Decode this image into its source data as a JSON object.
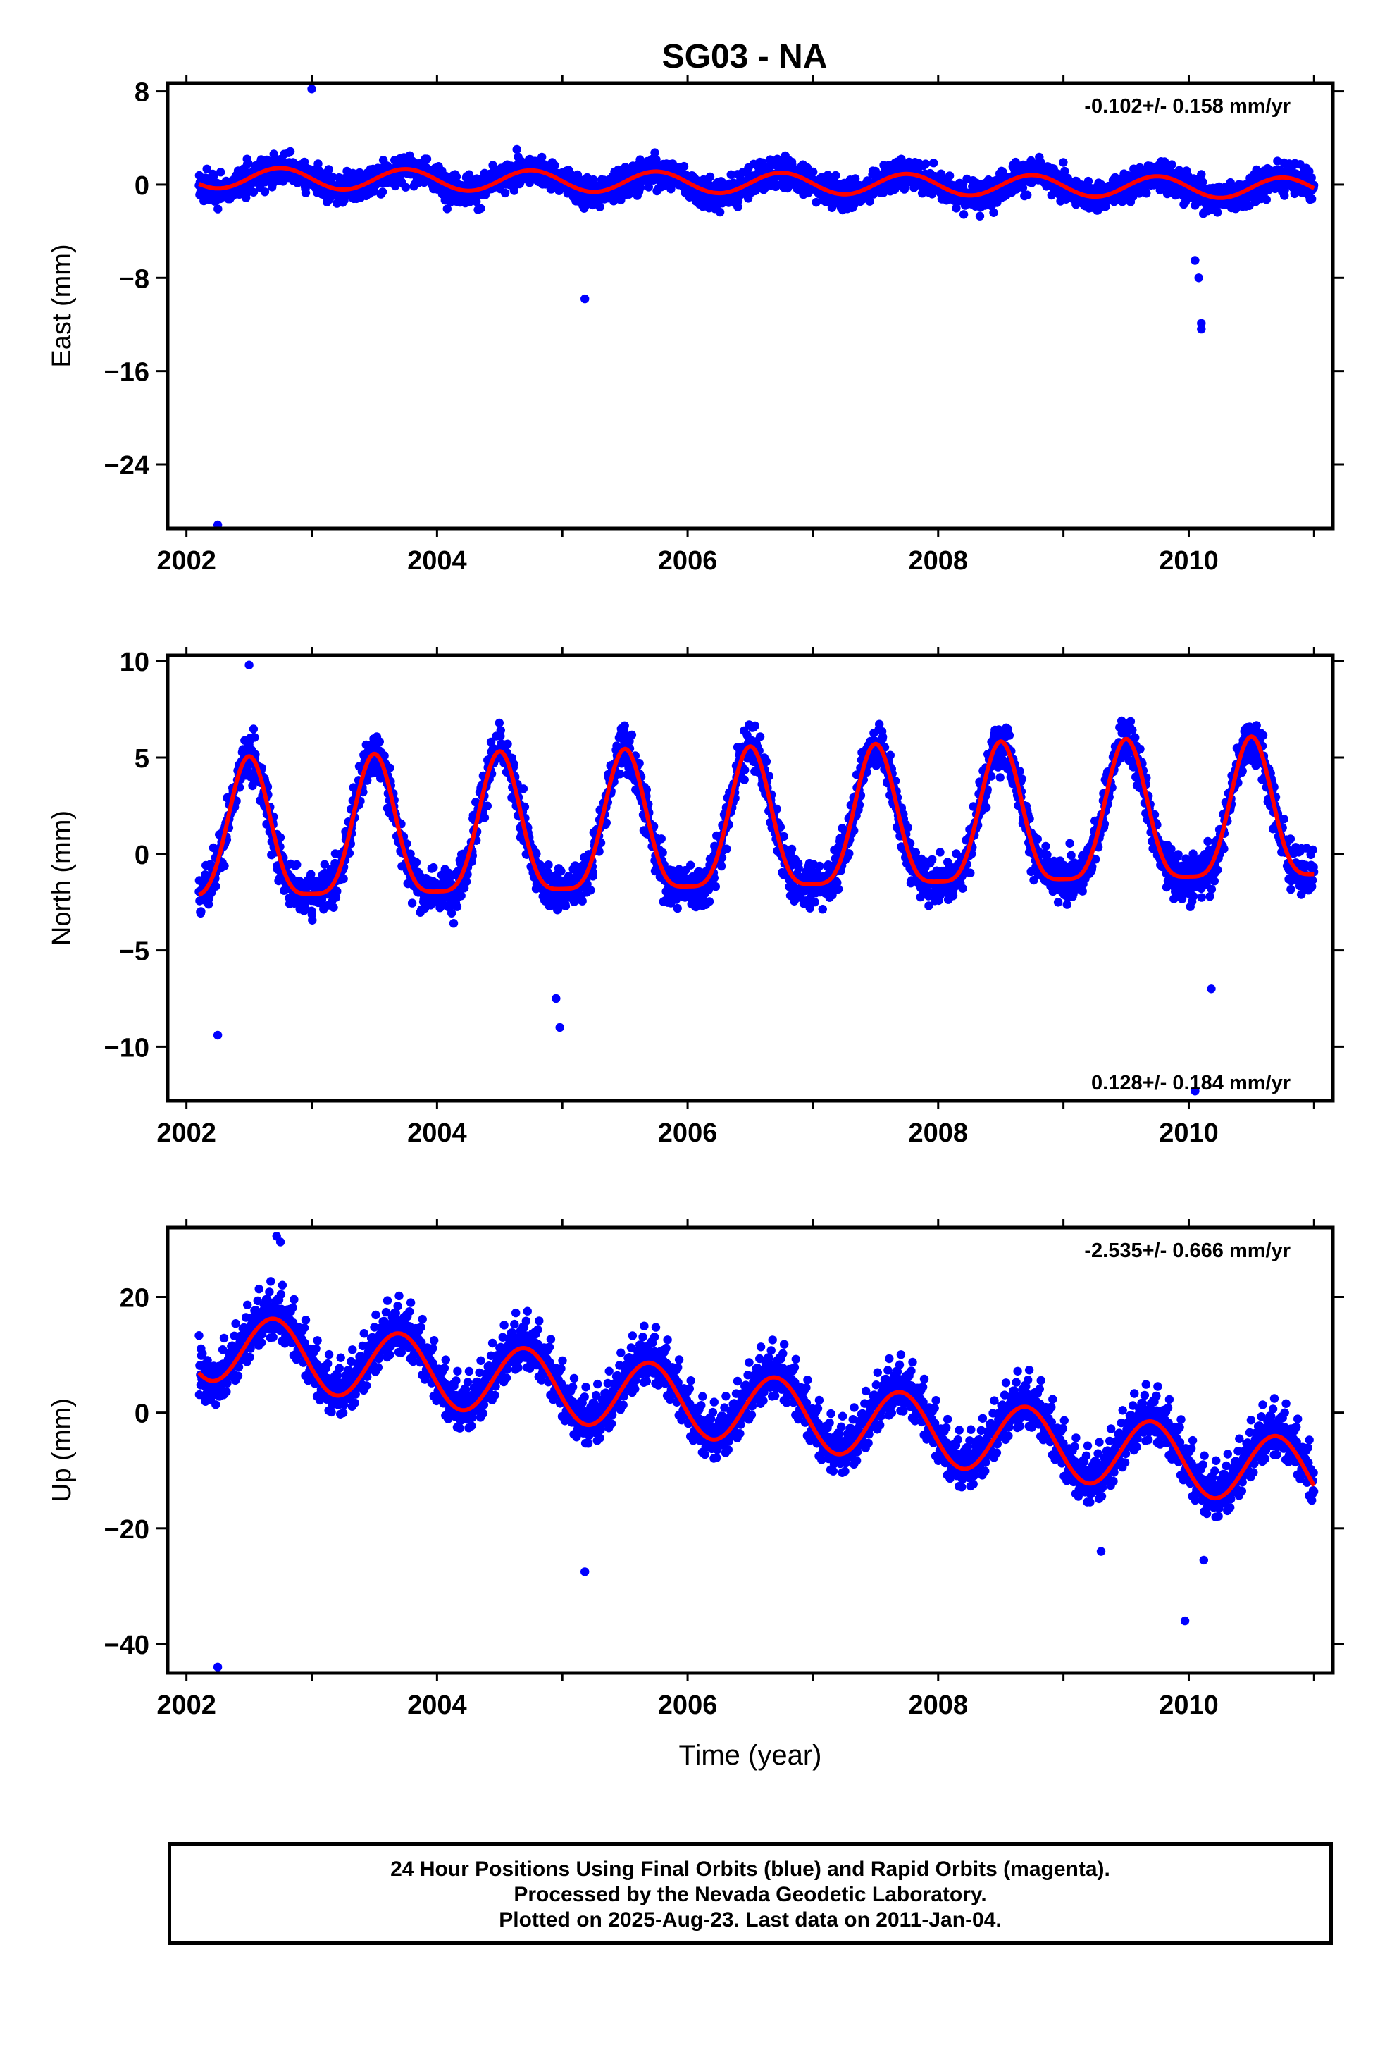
{
  "page_title": "SG03 - NA",
  "footer": {
    "line1": "24 Hour Positions Using Final Orbits (blue) and Rapid Orbits (magenta).",
    "line2": "Processed by the Nevada Geodetic Laboratory.",
    "line3": "Plotted on 2025-Aug-23. Last data on 2011-Jan-04."
  },
  "colors": {
    "points": "#0000ff",
    "fit": "#ff0000",
    "axes": "#000000"
  },
  "chart_data": [
    {
      "type": "scatter",
      "title": "SG03 - NA",
      "ylabel": "East (mm)",
      "xlabel": "",
      "rate_label": "-0.102+/- 0.158 mm/yr",
      "rate_position": "top-right",
      "xlim": [
        2001.85,
        2011.15
      ],
      "ylim": [
        -29.5,
        8.7
      ],
      "xticks": [
        2002,
        2004,
        2006,
        2008,
        2010
      ],
      "xtick_labels": [
        "2002",
        "2004",
        "2006",
        "2008",
        "2010"
      ],
      "yticks": [
        8,
        0,
        -8,
        -16,
        -24
      ],
      "ytick_labels": [
        "8",
        "0",
        "−8",
        "−16",
        "−24"
      ],
      "fit_model": {
        "offset": 0.6,
        "rate": -0.102,
        "annual_amp": 0.9,
        "annual_phase_year": 0.75,
        "semiannual_amp": 0.0
      },
      "scatter_sigma": 1.2,
      "outliers": [
        [
          2002.25,
          -29.2
        ],
        [
          2003.0,
          8.2
        ],
        [
          2005.18,
          -9.8
        ],
        [
          2010.1,
          -11.9
        ],
        [
          2010.1,
          -12.4
        ],
        [
          2010.08,
          -8.0
        ],
        [
          2010.05,
          -6.5
        ]
      ],
      "series": [
        {
          "name": "",
          "kind": "points"
        },
        {
          "name": "",
          "kind": "fit"
        }
      ]
    },
    {
      "type": "scatter",
      "title": "",
      "ylabel": "North (mm)",
      "xlabel": "",
      "rate_label": "0.128+/- 0.184 mm/yr",
      "rate_position": "bottom-right",
      "xlim": [
        2001.85,
        2011.15
      ],
      "ylim": [
        -12.8,
        10.3
      ],
      "xticks": [
        2002,
        2004,
        2006,
        2008,
        2010
      ],
      "xtick_labels": [
        "2002",
        "2004",
        "2006",
        "2008",
        "2010"
      ],
      "yticks": [
        10,
        5,
        0,
        -5,
        -10
      ],
      "ytick_labels": [
        "10",
        "5",
        "0",
        "−5",
        "−10"
      ],
      "fit_model": {
        "offset": 0.5,
        "rate": 0.128,
        "annual_amp": 3.6,
        "annual_phase_year": 0.5,
        "semiannual_amp": 0.9
      },
      "scatter_sigma": 1.1,
      "outliers": [
        [
          2002.25,
          -9.4
        ],
        [
          2002.5,
          9.8
        ],
        [
          2004.98,
          -9.0
        ],
        [
          2004.95,
          -7.5
        ],
        [
          2010.18,
          -7.0
        ],
        [
          2010.05,
          -12.3
        ]
      ],
      "series": [
        {
          "name": "",
          "kind": "points"
        },
        {
          "name": "",
          "kind": "fit"
        }
      ]
    },
    {
      "type": "scatter",
      "title": "",
      "ylabel": "Up (mm)",
      "xlabel": "Time (year)",
      "rate_label": "-2.535+/- 0.666 mm/yr",
      "rate_position": "top-right",
      "xlim": [
        2001.85,
        2011.15
      ],
      "ylim": [
        -45,
        32
      ],
      "xticks": [
        2002,
        2004,
        2006,
        2008,
        2010
      ],
      "xtick_labels": [
        "2002",
        "2004",
        "2006",
        "2008",
        "2010"
      ],
      "yticks": [
        20,
        0,
        -20,
        -40
      ],
      "ytick_labels": [
        "20",
        "0",
        "−20",
        "−40"
      ],
      "fit_model": {
        "offset": 12.0,
        "rate": -2.535,
        "annual_amp": 6.0,
        "annual_phase_year": 0.7,
        "semiannual_amp": 0.0
      },
      "scatter_sigma": 4.0,
      "outliers": [
        [
          2002.25,
          -44.0
        ],
        [
          2002.72,
          30.5
        ],
        [
          2002.75,
          29.5
        ],
        [
          2005.18,
          -27.5
        ],
        [
          2009.97,
          -36.0
        ],
        [
          2010.12,
          -25.5
        ],
        [
          2009.3,
          -24.0
        ]
      ],
      "series": [
        {
          "name": "",
          "kind": "points"
        },
        {
          "name": "",
          "kind": "fit"
        }
      ]
    }
  ]
}
